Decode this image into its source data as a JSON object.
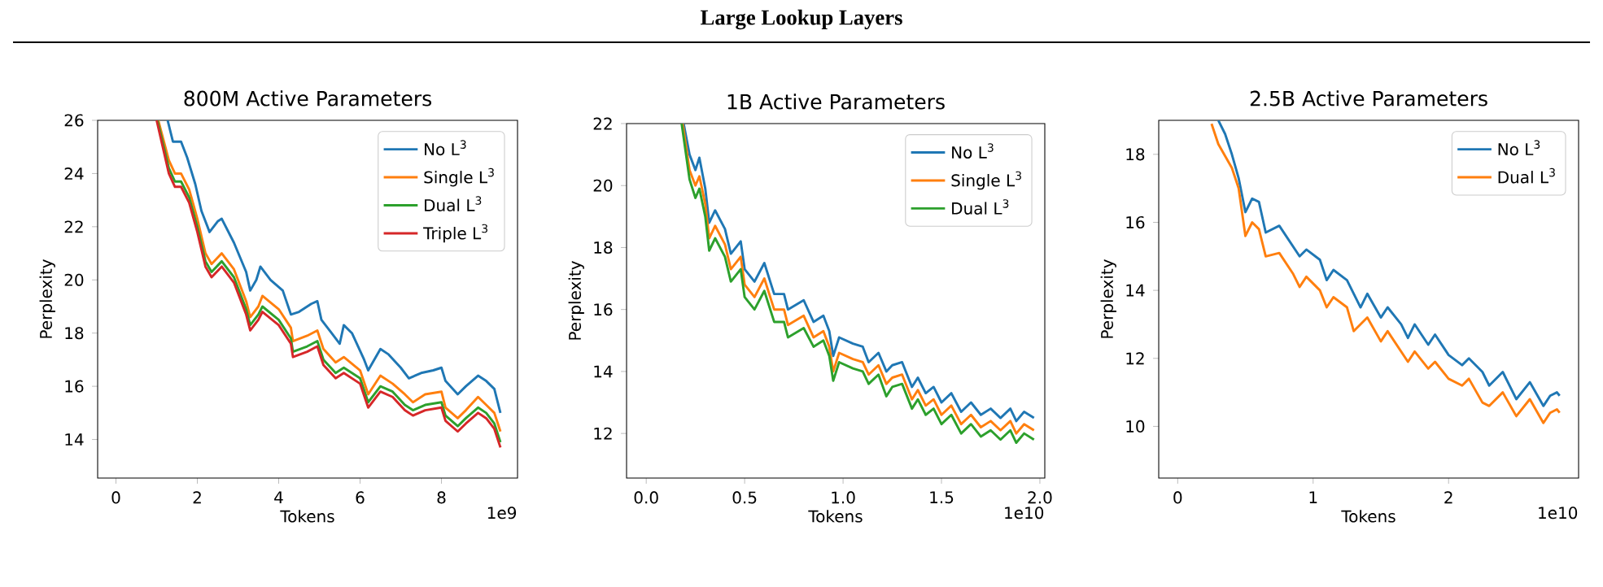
{
  "chart_data": [
    {
      "type": "line",
      "title": "800M Active Parameters",
      "xlabel": "Tokens",
      "ylabel": "Perplexity",
      "annotations": [
        "Large Lookup Layers",
        "1e9"
      ],
      "legend": "top right",
      "xlim": [
        -0.45,
        9.87
      ],
      "ylim": [
        12.55,
        26
      ],
      "xticks": [
        0,
        2,
        4,
        6,
        8
      ],
      "yticks": [
        14,
        16,
        18,
        20,
        22,
        24,
        26
      ],
      "series": [
        {
          "name": "No L$^{3}$",
          "color": "#1f77b4",
          "x": [
            1.27,
            1.4,
            1.6,
            1.75,
            1.95,
            2.1,
            2.3,
            2.5,
            2.6,
            2.9,
            3.2,
            3.3,
            3.45,
            3.55,
            3.8,
            4.1,
            4.3,
            4.5,
            4.8,
            4.95,
            5.05,
            5.3,
            5.5,
            5.6,
            5.8,
            6.1,
            6.2,
            6.5,
            6.7,
            7.0,
            7.2,
            7.5,
            7.8,
            8.0,
            8.1,
            8.4,
            8.6,
            8.9,
            9.1,
            9.3,
            9.45
          ],
          "values": [
            26,
            25.2,
            25.2,
            24.6,
            23.6,
            22.6,
            21.8,
            22.2,
            22.3,
            21.4,
            20.3,
            19.6,
            20.0,
            20.5,
            20.0,
            19.6,
            18.7,
            18.8,
            19.1,
            19.2,
            18.5,
            18.0,
            17.6,
            18.3,
            18.0,
            17.0,
            16.6,
            17.4,
            17.2,
            16.7,
            16.3,
            16.5,
            16.6,
            16.7,
            16.2,
            15.7,
            16.0,
            16.4,
            16.2,
            15.9,
            15.0
          ]
        },
        {
          "name": "Single L$^{3}$",
          "color": "#ff7f0e",
          "x": [
            1.04,
            1.3,
            1.45,
            1.6,
            1.8,
            2.0,
            2.2,
            2.35,
            2.6,
            2.9,
            3.2,
            3.3,
            3.5,
            3.6,
            4.0,
            4.3,
            4.35,
            4.7,
            4.95,
            5.1,
            5.4,
            5.6,
            6.0,
            6.2,
            6.5,
            6.8,
            7.1,
            7.3,
            7.6,
            8.0,
            8.1,
            8.4,
            8.6,
            8.9,
            9.1,
            9.3,
            9.45
          ],
          "values": [
            26,
            24.5,
            24.0,
            24.0,
            23.4,
            22.3,
            21.0,
            20.6,
            21.0,
            20.4,
            19.2,
            18.6,
            19.0,
            19.4,
            18.9,
            18.2,
            17.7,
            17.9,
            18.1,
            17.4,
            16.9,
            17.1,
            16.6,
            15.7,
            16.4,
            16.1,
            15.7,
            15.4,
            15.7,
            15.8,
            15.2,
            14.8,
            15.1,
            15.6,
            15.3,
            15.0,
            14.3
          ]
        },
        {
          "name": "Dual L$^{3}$",
          "color": "#2ca02c",
          "x": [
            1.02,
            1.3,
            1.45,
            1.6,
            1.8,
            2.0,
            2.2,
            2.35,
            2.6,
            2.9,
            3.2,
            3.3,
            3.5,
            3.6,
            4.0,
            4.3,
            4.35,
            4.7,
            4.95,
            5.1,
            5.4,
            5.6,
            6.0,
            6.2,
            6.5,
            6.8,
            7.1,
            7.3,
            7.6,
            8.0,
            8.1,
            8.4,
            8.6,
            8.9,
            9.1,
            9.3,
            9.45
          ],
          "values": [
            26,
            24.2,
            23.7,
            23.7,
            23.1,
            22.0,
            20.7,
            20.3,
            20.7,
            20.1,
            18.9,
            18.3,
            18.7,
            19.0,
            18.5,
            17.8,
            17.3,
            17.5,
            17.7,
            17.0,
            16.5,
            16.7,
            16.3,
            15.4,
            16.0,
            15.8,
            15.3,
            15.1,
            15.3,
            15.4,
            14.9,
            14.5,
            14.8,
            15.2,
            15.0,
            14.6,
            13.9
          ]
        },
        {
          "name": "Triple L$^{3}$",
          "color": "#d62728",
          "x": [
            1.0,
            1.3,
            1.45,
            1.6,
            1.8,
            2.0,
            2.2,
            2.35,
            2.6,
            2.9,
            3.2,
            3.3,
            3.5,
            3.6,
            4.0,
            4.3,
            4.35,
            4.7,
            4.95,
            5.1,
            5.4,
            5.6,
            6.0,
            6.2,
            6.5,
            6.8,
            7.1,
            7.3,
            7.6,
            8.0,
            8.1,
            8.4,
            8.6,
            8.9,
            9.1,
            9.3,
            9.45
          ],
          "values": [
            26,
            24.0,
            23.5,
            23.5,
            22.9,
            21.8,
            20.5,
            20.1,
            20.5,
            19.9,
            18.7,
            18.1,
            18.5,
            18.8,
            18.3,
            17.6,
            17.1,
            17.3,
            17.5,
            16.8,
            16.3,
            16.5,
            16.1,
            15.2,
            15.8,
            15.6,
            15.1,
            14.9,
            15.1,
            15.2,
            14.7,
            14.3,
            14.6,
            15.0,
            14.8,
            14.4,
            13.7
          ]
        }
      ]
    },
    {
      "type": "line",
      "title": "1B Active Parameters",
      "xlabel": "Tokens",
      "ylabel": "Perplexity",
      "annotations": [
        "1e10"
      ],
      "legend": "top right",
      "xlim": [
        -0.1,
        2.025
      ],
      "ylim": [
        10.56,
        22
      ],
      "xticks": [
        {
          "value": 0,
          "label": "0.0"
        },
        0.5,
        {
          "value": 1,
          "label": "1.0"
        },
        1.5,
        {
          "value": 2,
          "label": "2.0"
        }
      ],
      "yticks": [
        12,
        14,
        16,
        18,
        20,
        22
      ],
      "series": [
        {
          "name": "No L$^{3}$",
          "color": "#1f77b4",
          "x": [
            0.19,
            0.22,
            0.25,
            0.27,
            0.3,
            0.32,
            0.35,
            0.4,
            0.43,
            0.48,
            0.5,
            0.55,
            0.6,
            0.65,
            0.7,
            0.72,
            0.8,
            0.85,
            0.9,
            0.93,
            0.95,
            0.98,
            1.05,
            1.1,
            1.13,
            1.18,
            1.22,
            1.25,
            1.3,
            1.35,
            1.38,
            1.42,
            1.46,
            1.5,
            1.55,
            1.6,
            1.65,
            1.7,
            1.75,
            1.8,
            1.85,
            1.88,
            1.92,
            1.97
          ],
          "values": [
            22,
            21.0,
            20.5,
            20.9,
            19.9,
            18.8,
            19.2,
            18.6,
            17.8,
            18.2,
            17.3,
            16.9,
            17.5,
            16.5,
            16.5,
            16.0,
            16.3,
            15.6,
            15.8,
            15.3,
            14.5,
            15.1,
            14.9,
            14.8,
            14.3,
            14.6,
            14.0,
            14.2,
            14.3,
            13.5,
            13.8,
            13.3,
            13.5,
            13.0,
            13.3,
            12.7,
            13.0,
            12.6,
            12.8,
            12.5,
            12.8,
            12.4,
            12.7,
            12.5
          ]
        },
        {
          "name": "Single L$^{3}$",
          "color": "#ff7f0e",
          "x": [
            0.185,
            0.22,
            0.25,
            0.27,
            0.3,
            0.32,
            0.35,
            0.4,
            0.43,
            0.48,
            0.5,
            0.55,
            0.6,
            0.65,
            0.7,
            0.72,
            0.8,
            0.85,
            0.9,
            0.93,
            0.95,
            0.98,
            1.05,
            1.1,
            1.13,
            1.18,
            1.22,
            1.25,
            1.3,
            1.35,
            1.38,
            1.42,
            1.46,
            1.5,
            1.55,
            1.6,
            1.65,
            1.7,
            1.75,
            1.8,
            1.85,
            1.88,
            1.92,
            1.97
          ],
          "values": [
            22,
            20.5,
            20.0,
            20.3,
            19.4,
            18.3,
            18.7,
            18.1,
            17.3,
            17.7,
            16.8,
            16.4,
            17.0,
            16.0,
            16.0,
            15.5,
            15.8,
            15.1,
            15.3,
            14.8,
            14.0,
            14.6,
            14.4,
            14.3,
            13.9,
            14.2,
            13.6,
            13.8,
            13.9,
            13.1,
            13.4,
            12.9,
            13.1,
            12.6,
            12.9,
            12.3,
            12.6,
            12.2,
            12.4,
            12.1,
            12.4,
            12.0,
            12.3,
            12.1
          ]
        },
        {
          "name": "Dual L$^{3}$",
          "color": "#2ca02c",
          "x": [
            0.18,
            0.22,
            0.25,
            0.27,
            0.3,
            0.32,
            0.35,
            0.4,
            0.43,
            0.48,
            0.5,
            0.55,
            0.6,
            0.65,
            0.7,
            0.72,
            0.8,
            0.85,
            0.9,
            0.93,
            0.95,
            0.98,
            1.05,
            1.1,
            1.13,
            1.18,
            1.22,
            1.25,
            1.3,
            1.35,
            1.38,
            1.42,
            1.46,
            1.5,
            1.55,
            1.6,
            1.65,
            1.7,
            1.75,
            1.8,
            1.85,
            1.88,
            1.92,
            1.97
          ],
          "values": [
            22,
            20.2,
            19.6,
            19.9,
            19.0,
            17.9,
            18.3,
            17.7,
            16.9,
            17.3,
            16.4,
            16.0,
            16.6,
            15.6,
            15.6,
            15.1,
            15.4,
            14.8,
            15.0,
            14.5,
            13.7,
            14.3,
            14.1,
            14.0,
            13.6,
            13.9,
            13.2,
            13.5,
            13.6,
            12.8,
            13.1,
            12.6,
            12.8,
            12.3,
            12.6,
            12.0,
            12.3,
            11.9,
            12.1,
            11.8,
            12.1,
            11.7,
            12.0,
            11.8
          ]
        }
      ]
    },
    {
      "type": "line",
      "title": "2.5B Active Parameters",
      "xlabel": "Tokens",
      "ylabel": "Perplexity",
      "annotations": [
        "1e10"
      ],
      "legend": "top right",
      "xlim": [
        -0.14,
        2.96
      ],
      "ylim": [
        8.48,
        19
      ],
      "xticks": [
        0,
        1,
        2
      ],
      "yticks": [
        10,
        12,
        14,
        16,
        18
      ],
      "series": [
        {
          "name": "No L$^{3}$",
          "color": "#1f77b4",
          "x": [
            0.3,
            0.35,
            0.4,
            0.45,
            0.5,
            0.55,
            0.6,
            0.65,
            0.75,
            0.85,
            0.9,
            0.95,
            1.05,
            1.1,
            1.15,
            1.25,
            1.35,
            1.4,
            1.5,
            1.55,
            1.65,
            1.7,
            1.75,
            1.85,
            1.9,
            2.0,
            2.1,
            2.15,
            2.25,
            2.3,
            2.4,
            2.5,
            2.6,
            2.7,
            2.75,
            2.8,
            2.82
          ],
          "values": [
            19,
            18.6,
            18.0,
            17.3,
            16.3,
            16.7,
            16.6,
            15.7,
            15.9,
            15.3,
            15.0,
            15.2,
            14.9,
            14.3,
            14.6,
            14.3,
            13.5,
            13.9,
            13.2,
            13.5,
            13.0,
            12.6,
            13.0,
            12.4,
            12.7,
            12.1,
            11.8,
            12.0,
            11.6,
            11.2,
            11.6,
            10.8,
            11.3,
            10.6,
            10.9,
            11.0,
            10.9
          ]
        },
        {
          "name": "Dual L$^{3}$",
          "color": "#ff7f0e",
          "x": [
            0.25,
            0.3,
            0.4,
            0.45,
            0.5,
            0.55,
            0.6,
            0.65,
            0.75,
            0.85,
            0.9,
            0.95,
            1.05,
            1.1,
            1.15,
            1.25,
            1.3,
            1.4,
            1.5,
            1.55,
            1.65,
            1.7,
            1.75,
            1.85,
            1.9,
            2.0,
            2.1,
            2.15,
            2.25,
            2.3,
            2.4,
            2.5,
            2.6,
            2.7,
            2.75,
            2.8,
            2.82
          ],
          "values": [
            18.9,
            18.3,
            17.6,
            17.0,
            15.6,
            16.0,
            15.8,
            15.0,
            15.1,
            14.5,
            14.1,
            14.4,
            14.0,
            13.5,
            13.8,
            13.5,
            12.8,
            13.2,
            12.5,
            12.8,
            12.2,
            11.9,
            12.2,
            11.7,
            11.9,
            11.4,
            11.2,
            11.4,
            10.7,
            10.6,
            11.0,
            10.3,
            10.8,
            10.1,
            10.4,
            10.5,
            10.4
          ]
        }
      ]
    }
  ]
}
